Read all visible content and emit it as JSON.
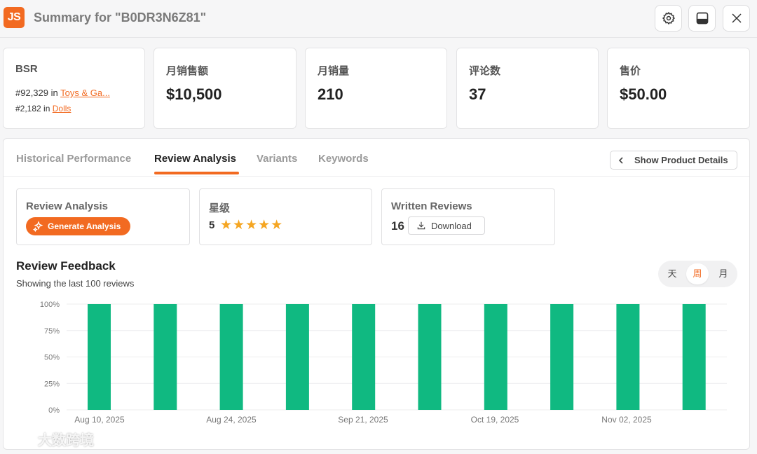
{
  "header": {
    "logo_text": "JS",
    "title": "Summary for \"B0DR3N6Z81\"",
    "icons": [
      "gear-icon",
      "panel-icon",
      "close-icon"
    ]
  },
  "stats": {
    "bsr": {
      "label": "BSR",
      "rank1_prefix": "#92,329 in",
      "rank1_link": "Toys & Ga...",
      "rank2_prefix": "#2,182 in",
      "rank2_link": "Dolls"
    },
    "monthly_sales_amount": {
      "label": "月销售额",
      "value": "$10,500"
    },
    "monthly_sales_volume": {
      "label": "月销量",
      "value": "210"
    },
    "review_count": {
      "label": "评论数",
      "value": "37"
    },
    "price": {
      "label": "售价",
      "value": "$50.00"
    }
  },
  "tabs": [
    {
      "label": "Historical Performance",
      "active": false
    },
    {
      "label": "Review Analysis",
      "active": true
    },
    {
      "label": "Variants",
      "active": false
    },
    {
      "label": "Keywords",
      "active": false
    }
  ],
  "show_details_label": "Show Product Details",
  "review_analysis": {
    "label": "Review Analysis",
    "button_label": "Generate Analysis"
  },
  "rating": {
    "label": "星级",
    "value": "5",
    "stars": "★★★★★"
  },
  "written_reviews": {
    "label": "Written Reviews",
    "count": "16",
    "download_label": "Download"
  },
  "feedback": {
    "title": "Review Feedback",
    "subtitle": "Showing the last 100 reviews",
    "periods": [
      {
        "label": "天",
        "selected": false
      },
      {
        "label": "周",
        "selected": true
      },
      {
        "label": "月",
        "selected": false
      }
    ]
  },
  "colors": {
    "accent": "#f26a21",
    "bar": "#10b981"
  },
  "watermark": "大数跨境",
  "chart_data": {
    "type": "bar",
    "y_ticks": [
      "100%",
      "75%",
      "50%",
      "25%",
      "0%"
    ],
    "ylim": [
      0,
      100
    ],
    "x_tick_labels": [
      "Aug 10, 2025",
      "Aug 24, 2025",
      "Sep 21, 2025",
      "Oct 19, 2025",
      "Nov 02, 2025"
    ],
    "values": [
      100,
      100,
      100,
      100,
      100,
      100,
      100,
      100,
      100,
      100
    ],
    "grid": true
  }
}
